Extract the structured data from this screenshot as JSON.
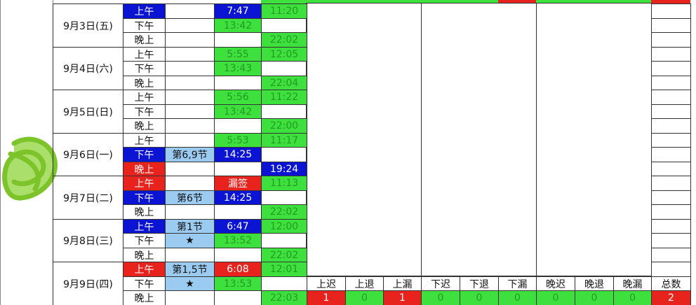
{
  "days": [
    {
      "date": "9月3日(五)",
      "periods": [
        {
          "label": "上午",
          "label_fill": "blue",
          "in": "7:47",
          "in_fill": "blue",
          "out": "11:20",
          "out_fill": "green"
        },
        {
          "label": "下午",
          "in": "13:42",
          "in_fill": "green"
        },
        {
          "label": "晚上",
          "out": "22:02",
          "out_fill": "green"
        }
      ]
    },
    {
      "date": "9月4日(六)",
      "periods": [
        {
          "label": "上午",
          "in": "5:55",
          "in_fill": "green",
          "out": "12:05",
          "out_fill": "green"
        },
        {
          "label": "下午",
          "in": "13:43",
          "in_fill": "green"
        },
        {
          "label": "晚上",
          "out": "22:04",
          "out_fill": "green"
        }
      ]
    },
    {
      "date": "9月5日(日)",
      "periods": [
        {
          "label": "上午",
          "in": "5:56",
          "in_fill": "green",
          "out": "11:22",
          "out_fill": "green"
        },
        {
          "label": "下午",
          "in": "13:42",
          "in_fill": "green"
        },
        {
          "label": "晚上",
          "out": "22:00",
          "out_fill": "green"
        }
      ]
    },
    {
      "date": "9月6日(一)",
      "periods": [
        {
          "label": "上午",
          "in": "5:53",
          "in_fill": "green",
          "out": "11:17",
          "out_fill": "green"
        },
        {
          "label": "下午",
          "label_fill": "blue",
          "note": "第6,9节",
          "note_fill": "light",
          "in": "14:25",
          "in_fill": "blue"
        },
        {
          "label": "晚上",
          "label_fill": "red",
          "out": "19:24",
          "out_fill": "blue"
        }
      ]
    },
    {
      "date": "9月7日(二)",
      "periods": [
        {
          "label": "上午",
          "label_fill": "red",
          "in": "漏签",
          "in_fill": "red",
          "out": "11:13",
          "out_fill": "green"
        },
        {
          "label": "下午",
          "label_fill": "blue",
          "note": "第6节",
          "note_fill": "light",
          "in": "14:25",
          "in_fill": "blue"
        },
        {
          "label": "晚上",
          "out": "22:02",
          "out_fill": "green"
        }
      ]
    },
    {
      "date": "9月8日(三)",
      "periods": [
        {
          "label": "上午",
          "label_fill": "blue",
          "note": "第1节",
          "note_fill": "light",
          "in": "6:47",
          "in_fill": "blue",
          "out": "12:00",
          "out_fill": "green"
        },
        {
          "label": "下午",
          "note": "★",
          "note_fill": "light",
          "in": "13:52",
          "in_fill": "green"
        },
        {
          "label": "晚上",
          "out": "22:02",
          "out_fill": "green"
        }
      ]
    },
    {
      "date": "9月9日(四)",
      "periods": [
        {
          "label": "上午",
          "label_fill": "red",
          "note": "第1,5节",
          "note_fill": "light",
          "in": "6:08",
          "in_fill": "red",
          "out": "12:01",
          "out_fill": "green"
        },
        {
          "label": "下午",
          "note": "★",
          "note_fill": "light",
          "in": "13:53",
          "in_fill": "green"
        },
        {
          "label": "晚上",
          "out": "22:03",
          "out_fill": "green"
        }
      ]
    }
  ],
  "stats": {
    "headers": [
      "上迟",
      "上退",
      "上漏",
      "下迟",
      "下退",
      "下漏",
      "晚迟",
      "晚退",
      "晚漏",
      "总数"
    ],
    "values": [
      1,
      0,
      1,
      0,
      0,
      0,
      0,
      0,
      0,
      2
    ],
    "fills": [
      "red",
      "green",
      "red",
      "green",
      "green",
      "green",
      "green",
      "green",
      "green",
      "red"
    ]
  }
}
